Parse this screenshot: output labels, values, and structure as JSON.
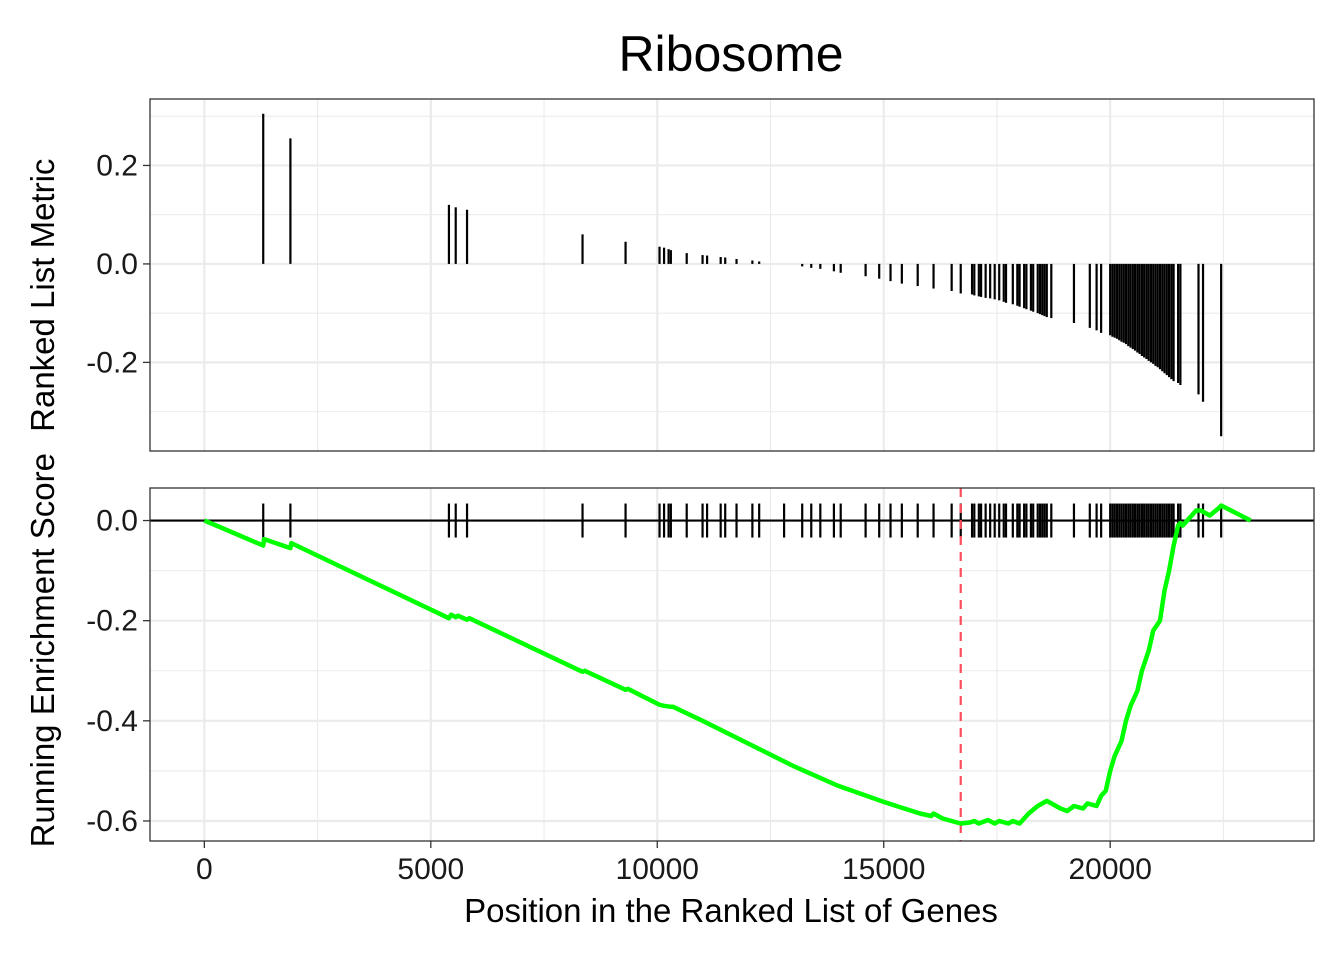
{
  "chart_data": {
    "type": "line",
    "title": "Ribosome",
    "xlabel": "Position in the Ranked List of Genes",
    "ylabel": "Running Enrichment Score Ranked List Metric",
    "ylabel_lines": [
      "Running Enrichment Score",
      "Ranked List Metric"
    ],
    "xlim": [
      -1200,
      24500
    ],
    "x_ticks": [
      0,
      5000,
      10000,
      15000,
      20000
    ],
    "x_tick_labels": [
      "0",
      "5000",
      "10000",
      "15000",
      "20000"
    ],
    "grid": true,
    "panels": [
      {
        "name": "ranked_list_metric",
        "type": "bar",
        "ylim": [
          -0.38,
          0.335
        ],
        "y_ticks": [
          0.2,
          0.0,
          -0.2
        ],
        "y_tick_labels": [
          "0.2",
          "0.0",
          "-0.2"
        ],
        "x": [
          1300,
          1900,
          5400,
          5550,
          5800,
          8350,
          9300,
          10050,
          10150,
          10250,
          10300,
          10650,
          11000,
          11100,
          11400,
          11500,
          11750,
          12100,
          12250,
          12800,
          13200,
          13400,
          13600,
          13900,
          14050,
          14600,
          14900,
          15150,
          15400,
          15750,
          16100,
          16500,
          16700,
          16950,
          17000,
          17100,
          17150,
          17250,
          17350,
          17450,
          17550,
          17650,
          17700,
          17850,
          17950,
          18000,
          18100,
          18150,
          18250,
          18300,
          18400,
          18450,
          18500,
          18550,
          18600,
          18700,
          19200,
          19550,
          19700,
          19800,
          20000,
          20050,
          20100,
          20150,
          20200,
          20250,
          20300,
          20350,
          20400,
          20450,
          20500,
          20550,
          20600,
          20650,
          20700,
          20750,
          20800,
          20850,
          20900,
          20950,
          21000,
          21050,
          21100,
          21150,
          21200,
          21250,
          21300,
          21350,
          21400,
          21500,
          21550,
          21950,
          22050,
          22450
        ],
        "values": [
          0.305,
          0.255,
          0.12,
          0.115,
          0.11,
          0.06,
          0.045,
          0.035,
          0.033,
          0.03,
          0.028,
          0.022,
          0.018,
          0.017,
          0.014,
          0.013,
          0.01,
          0.007,
          0.005,
          0,
          -0.005,
          -0.008,
          -0.01,
          -0.015,
          -0.018,
          -0.025,
          -0.03,
          -0.035,
          -0.04,
          -0.045,
          -0.05,
          -0.055,
          -0.06,
          -0.062,
          -0.064,
          -0.066,
          -0.067,
          -0.069,
          -0.07,
          -0.072,
          -0.074,
          -0.077,
          -0.079,
          -0.082,
          -0.085,
          -0.087,
          -0.09,
          -0.092,
          -0.095,
          -0.097,
          -0.1,
          -0.102,
          -0.104,
          -0.106,
          -0.108,
          -0.11,
          -0.12,
          -0.13,
          -0.135,
          -0.14,
          -0.145,
          -0.148,
          -0.15,
          -0.152,
          -0.155,
          -0.158,
          -0.16,
          -0.163,
          -0.167,
          -0.17,
          -0.173,
          -0.176,
          -0.18,
          -0.183,
          -0.187,
          -0.19,
          -0.193,
          -0.197,
          -0.2,
          -0.203,
          -0.207,
          -0.21,
          -0.214,
          -0.218,
          -0.222,
          -0.226,
          -0.23,
          -0.234,
          -0.238,
          -0.242,
          -0.246,
          -0.265,
          -0.28,
          -0.35
        ]
      },
      {
        "name": "running_enrichment_score",
        "type": "line",
        "color": "#00ff00",
        "ylim": [
          -0.64,
          0.065
        ],
        "y_ticks": [
          0.0,
          -0.2,
          -0.4,
          -0.6
        ],
        "y_tick_labels": [
          "0.0",
          "-0.2",
          "-0.4",
          "-0.6"
        ],
        "x": [
          0,
          1300,
          1320,
          1900,
          1920,
          5400,
          5450,
          5550,
          5600,
          5800,
          5850,
          8350,
          8400,
          9300,
          9350,
          10050,
          10150,
          10300,
          10350,
          11000,
          12000,
          13000,
          14000,
          15000,
          15800,
          16050,
          16100,
          16300,
          16700,
          16900,
          17000,
          17100,
          17300,
          17450,
          17550,
          17750,
          17850,
          18000,
          18200,
          18400,
          18600,
          18700,
          18900,
          19050,
          19200,
          19400,
          19500,
          19700,
          19800,
          19900,
          20000,
          20100,
          20250,
          20350,
          20450,
          20600,
          20700,
          20850,
          20950,
          21100,
          21200,
          21300,
          21400,
          21500,
          21550,
          21600,
          21700,
          21900,
          22000,
          22200,
          22400,
          22450,
          23100
        ],
        "values": [
          0.0,
          -0.05,
          -0.037,
          -0.055,
          -0.045,
          -0.195,
          -0.188,
          -0.193,
          -0.19,
          -0.198,
          -0.195,
          -0.302,
          -0.3,
          -0.338,
          -0.336,
          -0.368,
          -0.37,
          -0.372,
          -0.372,
          -0.4,
          -0.445,
          -0.49,
          -0.53,
          -0.562,
          -0.585,
          -0.59,
          -0.585,
          -0.595,
          -0.605,
          -0.603,
          -0.6,
          -0.605,
          -0.598,
          -0.605,
          -0.6,
          -0.605,
          -0.6,
          -0.605,
          -0.585,
          -0.57,
          -0.56,
          -0.565,
          -0.575,
          -0.58,
          -0.57,
          -0.575,
          -0.565,
          -0.57,
          -0.55,
          -0.54,
          -0.5,
          -0.47,
          -0.44,
          -0.4,
          -0.37,
          -0.34,
          -0.3,
          -0.26,
          -0.22,
          -0.2,
          -0.14,
          -0.1,
          -0.05,
          -0.01,
          -0.005,
          -0.01,
          0.0,
          0.02,
          0.02,
          0.01,
          0.025,
          0.03,
          0.0
        ],
        "hit_positions": [
          1300,
          1900,
          5400,
          5550,
          5800,
          8350,
          9300,
          10050,
          10150,
          10250,
          10300,
          10650,
          11000,
          11100,
          11400,
          11500,
          11750,
          12100,
          12250,
          12800,
          13200,
          13400,
          13600,
          13900,
          14050,
          14600,
          14900,
          15150,
          15400,
          15750,
          16100,
          16500,
          16700,
          16950,
          17000,
          17100,
          17150,
          17250,
          17350,
          17450,
          17550,
          17650,
          17700,
          17850,
          17950,
          18000,
          18100,
          18150,
          18250,
          18300,
          18400,
          18450,
          18500,
          18550,
          18600,
          18700,
          19200,
          19550,
          19700,
          19800,
          20000,
          20050,
          20100,
          20150,
          20200,
          20250,
          20300,
          20350,
          20400,
          20450,
          20500,
          20550,
          20600,
          20650,
          20700,
          20750,
          20800,
          20850,
          20900,
          20950,
          21000,
          21050,
          21100,
          21150,
          21200,
          21250,
          21300,
          21350,
          21400,
          21500,
          21550,
          21950,
          22050,
          22450
        ],
        "zero_line": 0.0,
        "max_deviation_x": 16700,
        "max_deviation_color": "#ff4d5a"
      }
    ]
  }
}
